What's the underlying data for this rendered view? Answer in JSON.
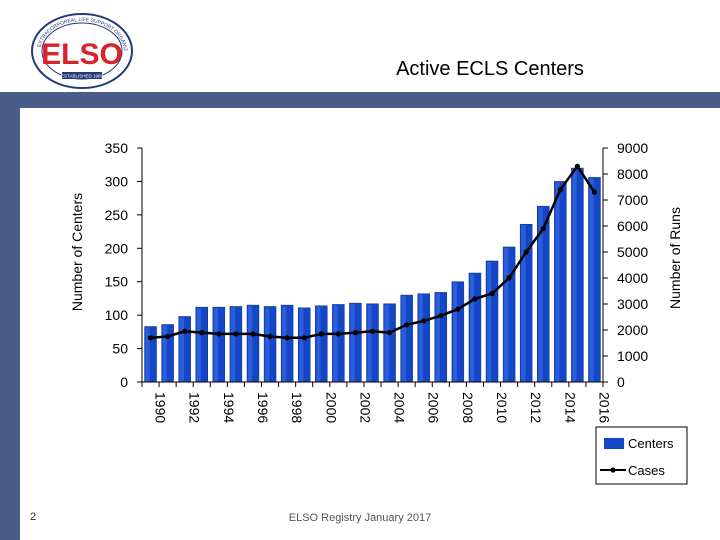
{
  "slide": {
    "title": "Active ECLS Centers",
    "footer": "ELSO Registry January  2017",
    "page_number": "2",
    "logo": {
      "icon": "elso-logo",
      "text": "ELSO",
      "ring_text": "EXTRACORPOREAL LIFE SUPPORT ORGANIZATION",
      "tag": "ESTABLISHED 1989"
    },
    "colors": {
      "accent_band": "#4a5d8a",
      "bar_fill": "#1447c8",
      "logo_red": "#d9222a",
      "logo_navy": "#223a7a"
    }
  },
  "chart_data": {
    "type": "bar",
    "categories": [
      "1990",
      "1991",
      "1992",
      "1993",
      "1994",
      "1995",
      "1996",
      "1997",
      "1998",
      "1999",
      "2000",
      "2001",
      "2002",
      "2003",
      "2004",
      "2005",
      "2006",
      "2007",
      "2008",
      "2009",
      "2010",
      "2011",
      "2012",
      "2013",
      "2014",
      "2015",
      "2016"
    ],
    "x_tick_labels": [
      "1990",
      "1992",
      "1994",
      "1996",
      "1998",
      "2000",
      "2002",
      "2004",
      "2006",
      "2008",
      "2010",
      "2012",
      "2014",
      "2016"
    ],
    "series": [
      {
        "name": "Centers",
        "type": "bar",
        "axis": "left",
        "color": "#1447c8",
        "values": [
          83,
          86,
          98,
          112,
          112,
          113,
          115,
          113,
          115,
          111,
          114,
          116,
          118,
          117,
          117,
          130,
          132,
          134,
          150,
          163,
          181,
          202,
          236,
          263,
          300,
          320,
          306
        ]
      },
      {
        "name": "Cases",
        "type": "line",
        "axis": "right",
        "color": "#000000",
        "values": [
          1700,
          1750,
          1950,
          1900,
          1850,
          1850,
          1850,
          1750,
          1700,
          1700,
          1850,
          1850,
          1900,
          1950,
          1900,
          2200,
          2350,
          2550,
          2800,
          3200,
          3400,
          4000,
          5000,
          5900,
          7400,
          8300,
          7300
        ]
      }
    ],
    "ylabel": "Number of Centers",
    "y2label": "Number of Runs",
    "ylim": [
      0,
      350
    ],
    "y2lim": [
      0,
      9000
    ],
    "yticks": [
      "0",
      "50",
      "100",
      "150",
      "200",
      "250",
      "300",
      "350"
    ],
    "y2ticks": [
      "0",
      "1000",
      "2000",
      "3000",
      "4000",
      "5000",
      "6000",
      "7000",
      "8000",
      "9000"
    ],
    "grid": false,
    "legend_position": "bottom-right"
  }
}
